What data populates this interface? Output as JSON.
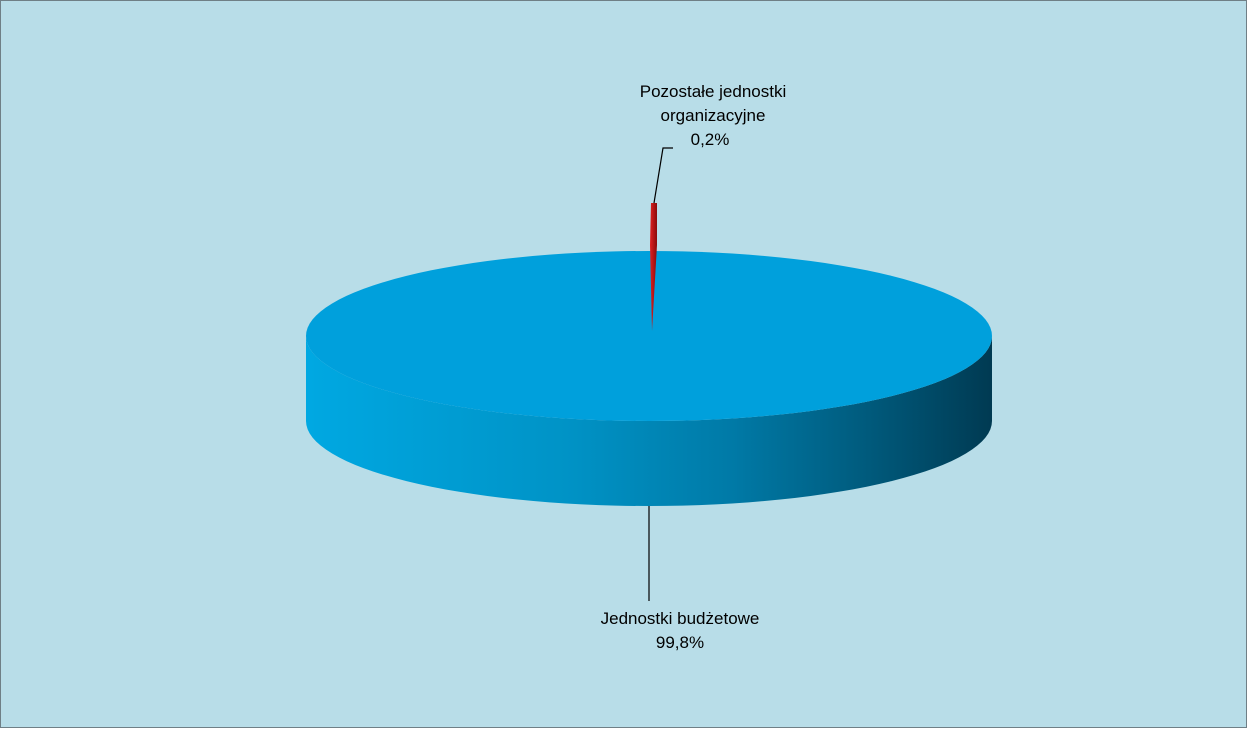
{
  "chart_data": {
    "type": "pie",
    "slices": [
      {
        "label": "Jednostki budżetowe",
        "value": 99.8,
        "value_label": "99,8%",
        "color": "#00a0dc"
      },
      {
        "label_lines": [
          "Pozostałe jednostki",
          "organizacyjne"
        ],
        "value": 0.2,
        "value_label": "0,2%",
        "color": "#cc1010"
      }
    ],
    "style": "3d",
    "background": "#b8dde8"
  }
}
